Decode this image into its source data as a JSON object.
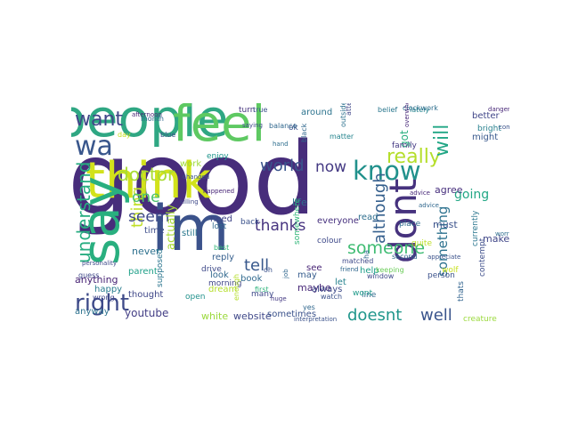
{
  "colors": {
    "background": "#ffffff",
    "palette": [
      "#440154",
      "#443a83",
      "#31688e",
      "#21918c",
      "#35b779",
      "#90d743",
      "#fde725"
    ]
  },
  "words": [
    {
      "text": "good",
      "color": "#472d7b"
    },
    {
      "text": "people",
      "color": "#2fa783"
    },
    {
      "text": "think",
      "color": "#d2e21b"
    },
    {
      "text": "im",
      "color": "#3b528b"
    },
    {
      "text": "say",
      "color": "#29af7f"
    },
    {
      "text": "feel",
      "color": "#5ec962"
    },
    {
      "text": "dont",
      "color": "#46327e"
    },
    {
      "text": "know",
      "color": "#21918c"
    },
    {
      "text": "right",
      "color": "#3e4a89"
    },
    {
      "text": "wa",
      "color": "#39568c"
    },
    {
      "text": "want",
      "color": "#404688"
    },
    {
      "text": "really",
      "color": "#b5de2b"
    },
    {
      "text": "doctor",
      "color": "#a8db34"
    },
    {
      "text": "world",
      "color": "#3a548c"
    },
    {
      "text": "will",
      "color": "#21a685"
    },
    {
      "text": "understand",
      "color": "#27ad81"
    },
    {
      "text": "although",
      "color": "#355f8d"
    },
    {
      "text": "thing",
      "color": "#c0df25"
    },
    {
      "text": "seem",
      "color": "#3e4989"
    },
    {
      "text": "tell",
      "color": "#38588c"
    },
    {
      "text": "thanks",
      "color": "#46337f"
    },
    {
      "text": "one",
      "color": "#4ac16d"
    },
    {
      "text": "now",
      "color": "#443983"
    },
    {
      "text": "someone",
      "color": "#3fbc73"
    },
    {
      "text": "doesnt",
      "color": "#1f968b"
    },
    {
      "text": "well",
      "color": "#3a548c"
    },
    {
      "text": "something",
      "color": "#2c718e"
    },
    {
      "text": "going",
      "color": "#22a785"
    },
    {
      "text": "actually",
      "color": "#a8db34"
    },
    {
      "text": "youtube",
      "color": "#433e85"
    },
    {
      "text": "website",
      "color": "#3f4889"
    },
    {
      "text": "white",
      "color": "#9bd93c"
    },
    {
      "text": "sometimes",
      "color": "#3b528b"
    },
    {
      "text": "maybe",
      "color": "#482878"
    },
    {
      "text": "may",
      "color": "#365c8d"
    },
    {
      "text": "many",
      "color": "#3e4a89"
    },
    {
      "text": "book",
      "color": "#306a8e"
    },
    {
      "text": "look",
      "color": "#31688e"
    },
    {
      "text": "reply",
      "color": "#355f8d"
    },
    {
      "text": "still",
      "color": "#2a778e"
    },
    {
      "text": "dream",
      "color": "#b5de2b"
    },
    {
      "text": "life",
      "color": "#2e6f8e"
    },
    {
      "text": "need",
      "color": "#404588"
    },
    {
      "text": "back",
      "color": "#3b528b"
    },
    {
      "text": "lost",
      "color": "#31688e"
    },
    {
      "text": "anything",
      "color": "#482374"
    },
    {
      "text": "never",
      "color": "#2d708e"
    },
    {
      "text": "parent",
      "color": "#1fa088"
    },
    {
      "text": "thought",
      "color": "#3f4788"
    },
    {
      "text": "time",
      "color": "#3d4d8a"
    },
    {
      "text": "happy",
      "color": "#287c8e"
    },
    {
      "text": "anyway",
      "color": "#2c728e"
    },
    {
      "text": "work",
      "color": "#a0da39"
    },
    {
      "text": "enjoy",
      "color": "#1f948c"
    },
    {
      "text": "turn",
      "color": "#46337f"
    },
    {
      "text": "true",
      "color": "#3b528b"
    },
    {
      "text": "around",
      "color": "#2c738e"
    },
    {
      "text": "belief",
      "color": "#2a778e"
    },
    {
      "text": "lately",
      "color": "#25848e"
    },
    {
      "text": "better",
      "color": "#404688"
    },
    {
      "text": "might",
      "color": "#38588c"
    },
    {
      "text": "bright",
      "color": "#27808e"
    },
    {
      "text": "agree",
      "color": "#472f7d"
    },
    {
      "text": "must",
      "color": "#3b528b"
    },
    {
      "text": "make",
      "color": "#404688"
    },
    {
      "text": "got",
      "color": "#29af7f"
    },
    {
      "text": "read",
      "color": "#2e6e8e"
    },
    {
      "text": "place",
      "color": "#2f6c8e"
    },
    {
      "text": "quite",
      "color": "#bddf26"
    },
    {
      "text": "everyone",
      "color": "#46307e"
    },
    {
      "text": "always",
      "color": "#3e4a89"
    },
    {
      "text": "let",
      "color": "#26828e"
    },
    {
      "text": "see",
      "color": "#482576"
    },
    {
      "text": "help",
      "color": "#1f9e89"
    },
    {
      "text": "person",
      "color": "#3b528b"
    },
    {
      "text": "wolf",
      "color": "#c8e020"
    },
    {
      "text": "line",
      "color": "#31688e"
    },
    {
      "text": "wont",
      "color": "#1f9a8a"
    },
    {
      "text": "creature",
      "color": "#9bd93c"
    },
    {
      "text": "thats",
      "color": "#32648e"
    },
    {
      "text": "contempt",
      "color": "#3d4d8a"
    },
    {
      "text": "currently",
      "color": "#2a768e"
    },
    {
      "text": "drive",
      "color": "#3e4989"
    },
    {
      "text": "morning",
      "color": "#404688"
    },
    {
      "text": "open",
      "color": "#21918c"
    },
    {
      "text": "guess",
      "color": "#3f4889"
    },
    {
      "text": "wrong",
      "color": "#404688"
    },
    {
      "text": "supposed",
      "color": "#2b758e"
    },
    {
      "text": "colour",
      "color": "#3e4989"
    },
    {
      "text": "somewhere",
      "color": "#32b67a"
    },
    {
      "text": "ok",
      "color": "#3b528b"
    },
    {
      "text": "black",
      "color": "#31688e"
    },
    {
      "text": "matter",
      "color": "#25848e"
    },
    {
      "text": "window",
      "color": "#3e4989"
    },
    {
      "text": "second",
      "color": "#31688e"
    },
    {
      "text": "family",
      "color": "#443983"
    },
    {
      "text": "month",
      "color": "#31688e"
    },
    {
      "text": "day",
      "color": "#c8e020"
    },
    {
      "text": "blue",
      "color": "#3b528b"
    },
    {
      "text": "clockwork",
      "color": "#2e6e8e"
    },
    {
      "text": "attention",
      "color": "#404688"
    },
    {
      "text": "balance",
      "color": "#31688e"
    },
    {
      "text": "outside",
      "color": "#2c718e"
    },
    {
      "text": "first",
      "color": "#2fb47c"
    },
    {
      "text": "enough",
      "color": "#b5de2b"
    },
    {
      "text": "matched",
      "color": "#3e4989"
    },
    {
      "text": "ha",
      "color": "#31688e"
    },
    {
      "text": "oh",
      "color": "#3b528b"
    },
    {
      "text": "keeping",
      "color": "#6ccd5a"
    },
    {
      "text": "watch",
      "color": "#3b528b"
    },
    {
      "text": "yes",
      "color": "#31688e"
    },
    {
      "text": "best",
      "color": "#35b779"
    },
    {
      "text": "personality",
      "color": "#3e4989"
    },
    {
      "text": "afternoon",
      "color": "#482576"
    },
    {
      "text": "changed",
      "color": "#3b528b"
    },
    {
      "text": "hand",
      "color": "#2e6e8e"
    },
    {
      "text": "advice",
      "color": "#482878"
    },
    {
      "text": "saying",
      "color": "#3e4a89"
    },
    {
      "text": "advice",
      "color": "#31688e"
    },
    {
      "text": "overwhelmed",
      "color": "#482878"
    },
    {
      "text": "appreciate",
      "color": "#3b528b"
    },
    {
      "text": "danger",
      "color": "#482878"
    },
    {
      "text": "worry",
      "color": "#2e6e8e"
    },
    {
      "text": "huge",
      "color": "#443983"
    },
    {
      "text": "job",
      "color": "#31688e"
    },
    {
      "text": "interpretation",
      "color": "#3b528b"
    },
    {
      "text": "happened",
      "color": "#482576"
    },
    {
      "text": "killing",
      "color": "#3e4989"
    },
    {
      "text": "friend",
      "color": "#31688e"
    },
    {
      "text": "comedy",
      "color": "#3b528b"
    }
  ]
}
